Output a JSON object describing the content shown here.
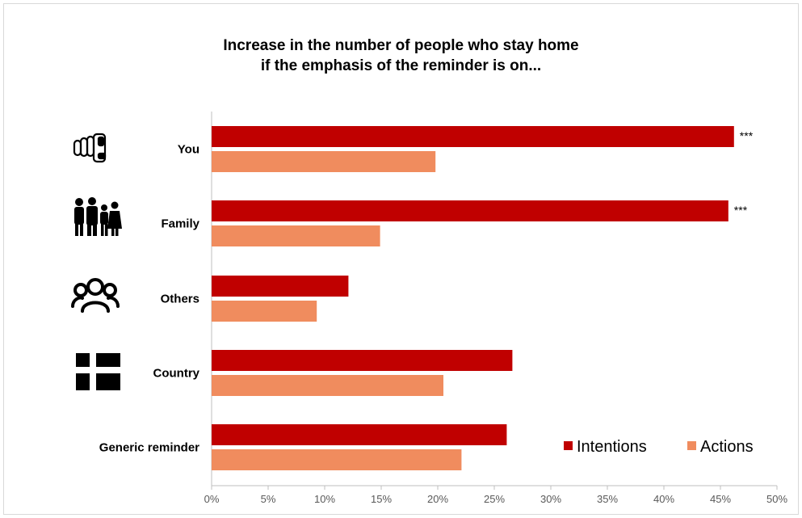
{
  "chart_data": {
    "type": "bar",
    "orientation": "horizontal",
    "title_lines": [
      "Increase in the number of people who stay home",
      "if the emphasis of the reminder is on..."
    ],
    "categories": [
      "You",
      "Family",
      "Others",
      "Country",
      "Generic reminder"
    ],
    "category_icons": [
      "pointing-hand-icon",
      "family-icon",
      "group-icon",
      "flag-icon",
      ""
    ],
    "series": [
      {
        "name": "Intentions",
        "color": "#c00000",
        "values": [
          46.2,
          45.7,
          12.1,
          26.6,
          26.1
        ]
      },
      {
        "name": "Actions",
        "color": "#f08c5e",
        "values": [
          19.8,
          14.9,
          9.3,
          20.5,
          22.1
        ]
      }
    ],
    "annotations": [
      "***",
      "***",
      "",
      "",
      ""
    ],
    "x_ticks": [
      "0%",
      "5%",
      "10%",
      "15%",
      "20%",
      "25%",
      "30%",
      "35%",
      "40%",
      "45%",
      "50%"
    ],
    "xlim": [
      0,
      50
    ],
    "legend_position": "bottom-right",
    "grid": false
  }
}
